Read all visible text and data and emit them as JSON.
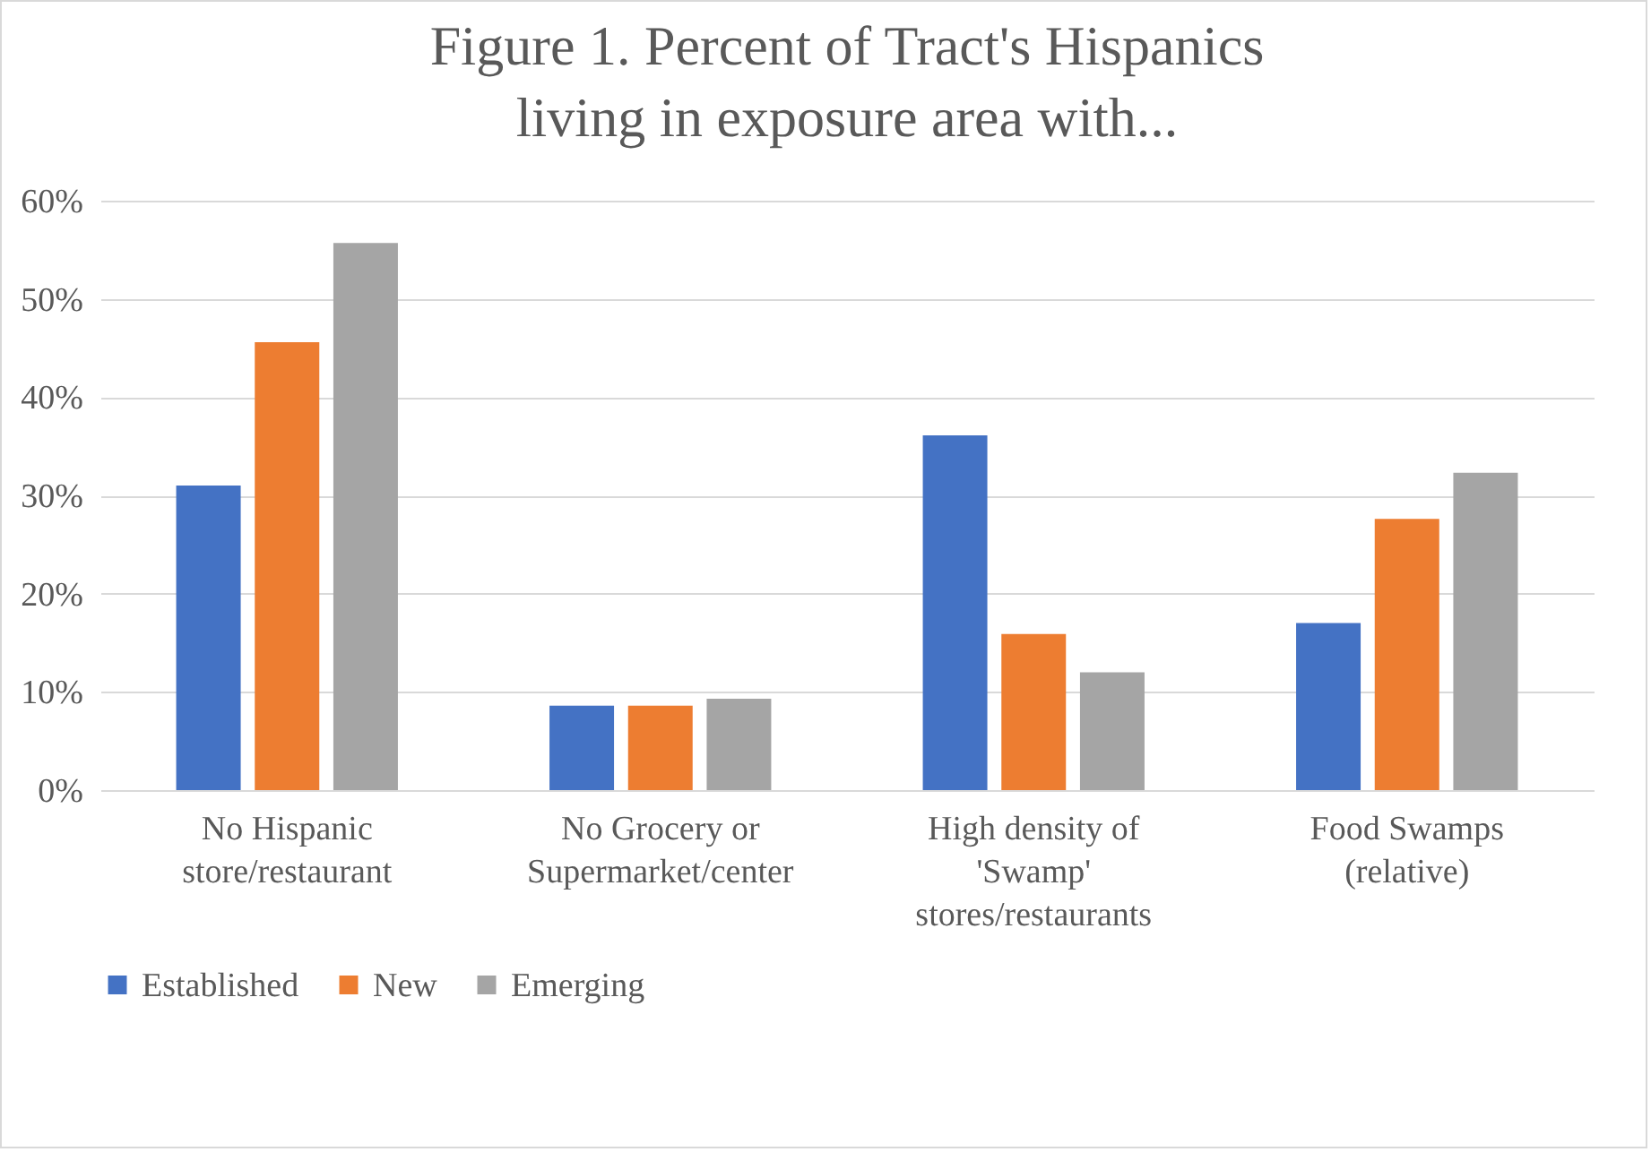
{
  "chart_data": {
    "type": "bar",
    "title": "Figure 1. Percent of Tract's Hispanics living in exposure area with...",
    "categories": [
      "No Hispanic store/restaurant",
      "No Grocery or Supermarket/center",
      "High density of 'Swamp' stores/restaurants",
      "Food Swamps (relative)"
    ],
    "series": [
      {
        "name": "Established",
        "color": "#4472c4",
        "values": [
          31.0,
          8.6,
          36.1,
          17.0
        ]
      },
      {
        "name": "New",
        "color": "#ed7d31",
        "values": [
          45.6,
          8.6,
          15.9,
          27.6
        ]
      },
      {
        "name": "Emerging",
        "color": "#a5a5a5",
        "values": [
          55.7,
          9.3,
          12.0,
          32.3
        ]
      }
    ],
    "ylim": [
      0,
      60
    ],
    "yticks": [
      {
        "value": 0,
        "label": "0%"
      },
      {
        "value": 10,
        "label": "10%"
      },
      {
        "value": 20,
        "label": "20%"
      },
      {
        "value": 30,
        "label": "30%"
      },
      {
        "value": 40,
        "label": "40%"
      },
      {
        "value": 50,
        "label": "50%"
      },
      {
        "value": 60,
        "label": "60%"
      }
    ],
    "grid": "y",
    "legend": "bottom"
  }
}
